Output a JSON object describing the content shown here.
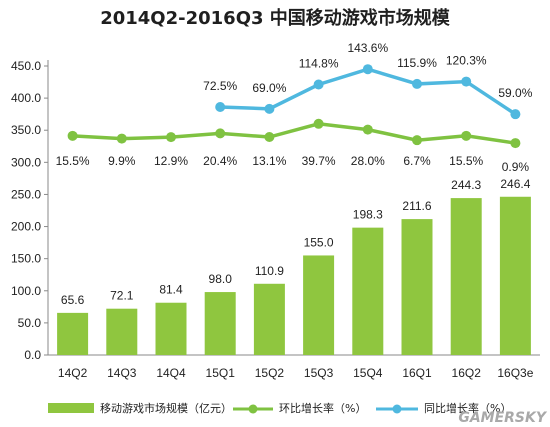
{
  "chart_data": {
    "type": "bar",
    "title": "2014Q2-2016Q3 中国移动游戏市场规模",
    "categories": [
      "14Q2",
      "14Q3",
      "14Q4",
      "15Q1",
      "15Q2",
      "15Q3",
      "15Q4",
      "16Q1",
      "16Q2",
      "16Q3e"
    ],
    "ylim": [
      0,
      450
    ],
    "yticks": [
      "0.0",
      "50.0",
      "100.0",
      "150.0",
      "200.0",
      "250.0",
      "300.0",
      "350.0",
      "400.0",
      "450.0"
    ],
    "series": [
      {
        "name": "移动游戏市场规模（亿元）",
        "kind": "bar",
        "color": "#8fc63f",
        "values": [
          65.6,
          72.1,
          81.4,
          98.0,
          110.9,
          155.0,
          198.3,
          211.6,
          244.3,
          246.4
        ],
        "labels": [
          "65.6",
          "72.1",
          "81.4",
          "98.0",
          "110.9",
          "155.0",
          "198.3",
          "211.6",
          "244.3",
          "246.4"
        ]
      },
      {
        "name": "环比增长率（%）",
        "kind": "line",
        "color": "#7fc241",
        "values": [
          15.5,
          9.9,
          12.9,
          20.4,
          13.1,
          39.7,
          28.0,
          6.7,
          15.5,
          0.9
        ],
        "labels": [
          "15.5%",
          "9.9%",
          "12.9%",
          "20.4%",
          "13.1%",
          "39.7%",
          "28.0%",
          "6.7%",
          "15.5%",
          "0.9%"
        ]
      },
      {
        "name": "同比增长率（%）",
        "kind": "line",
        "color": "#4fb8df",
        "values": [
          null,
          null,
          null,
          72.5,
          69.0,
          114.8,
          143.6,
          115.9,
          120.3,
          59.0
        ],
        "labels": [
          null,
          null,
          null,
          "72.5%",
          "69.0%",
          "114.8%",
          "143.6%",
          "115.9%",
          "120.3%",
          "59.0%"
        ]
      }
    ],
    "legend_position": "bottom",
    "grid": false
  },
  "watermark": "GAMERSKY"
}
